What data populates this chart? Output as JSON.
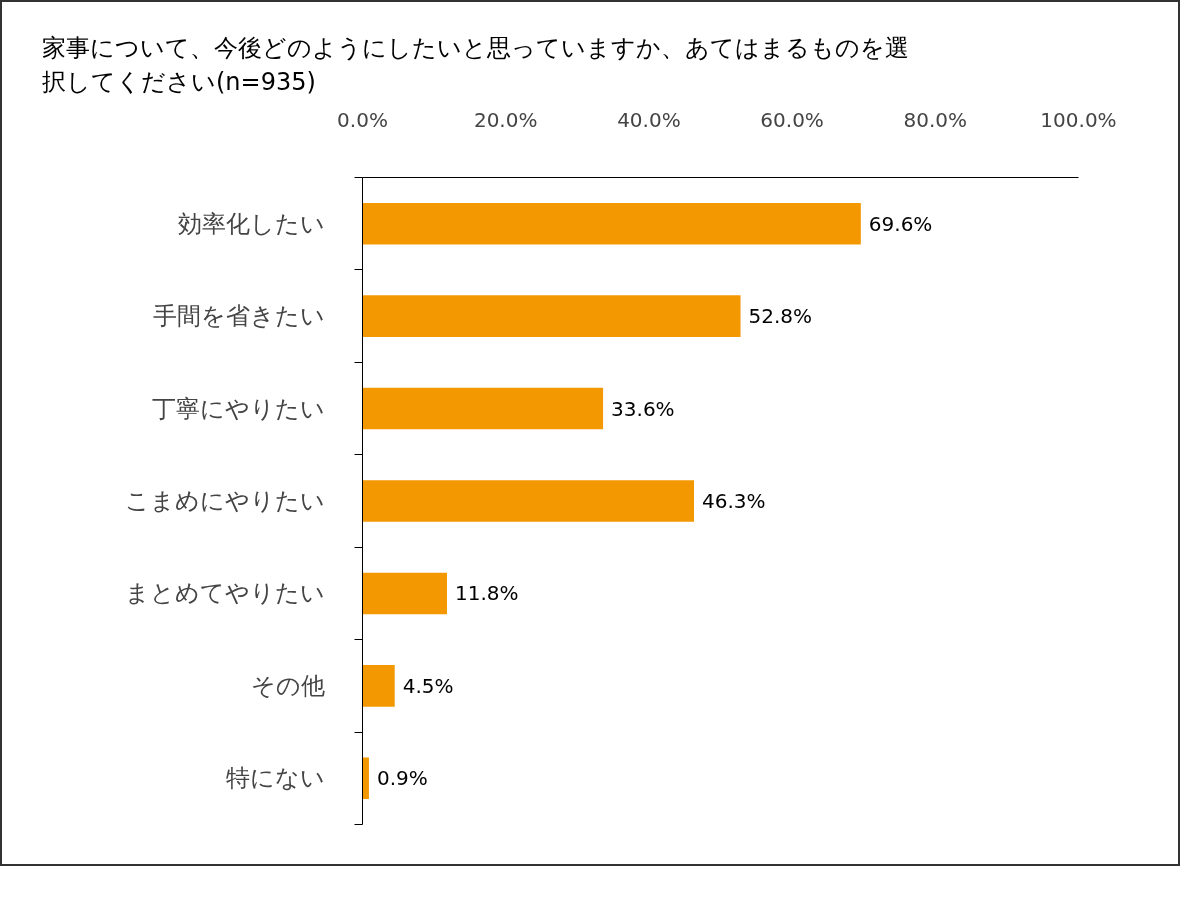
{
  "chart_data": {
    "type": "bar",
    "orientation": "horizontal",
    "title": "家事について、今後どのようにしたいと思っていますか、あてはまるものを選択してください(n=935)",
    "categories": [
      "効率化したい",
      "手間を省きたい",
      "丁寧にやりたい",
      "こまめにやりたい",
      "まとめてやりたい",
      "その他",
      "特にない"
    ],
    "values": [
      69.6,
      52.8,
      33.6,
      46.3,
      11.8,
      4.5,
      0.9
    ],
    "value_labels": [
      "69.6%",
      "52.8%",
      "33.6%",
      "46.3%",
      "11.8%",
      "4.5%",
      "0.9%"
    ],
    "color": "#f39800",
    "xlim": [
      0,
      100
    ],
    "xticks": [
      {
        "value": 0,
        "label": "0.0%"
      },
      {
        "value": 20,
        "label": "20.0%"
      },
      {
        "value": 40,
        "label": "40.0%"
      },
      {
        "value": 60,
        "label": "60.0%"
      },
      {
        "value": 80,
        "label": "80.0%"
      },
      {
        "value": 100,
        "label": "100.0%"
      }
    ],
    "grid": false
  }
}
